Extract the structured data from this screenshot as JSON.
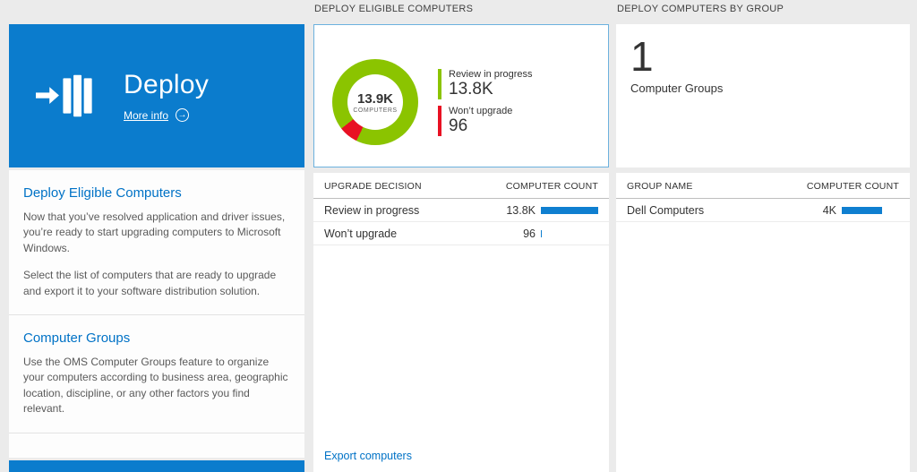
{
  "colors": {
    "tile_blue": "#0b7ccd",
    "link_blue": "#0072c6",
    "bar_blue": "#0f7fd0",
    "chart_green": "#8bc400",
    "chart_red": "#e81123",
    "selected_tile_border": "#6cb1de",
    "page_background": "#ebebeb"
  },
  "left_panel": {
    "tile": {
      "title": "Deploy",
      "more_info_label": "More info"
    },
    "sections": [
      {
        "heading": "Deploy Eligible Computers",
        "paragraphs": [
          "Now that you’ve resolved application and driver issues, you’re ready to start upgrading computers to Microsoft Windows.",
          "Select the list of computers that are ready to upgrade and export it to your software distribution solution."
        ]
      },
      {
        "heading": "Computer Groups",
        "paragraphs": [
          "Use the OMS Computer Groups feature to organize your computers according to business area, geographic location, discipline, or any other factors you find relevant."
        ]
      }
    ]
  },
  "eligible_column": {
    "header": "DEPLOY ELIGIBLE COMPUTERS",
    "donut_center": {
      "value": "13.9K",
      "label": "COMPUTERS"
    },
    "legend": [
      {
        "label": "Review in progress",
        "value": "13.8K"
      },
      {
        "label": "Won’t upgrade",
        "value": "96"
      }
    ],
    "table": {
      "col_label": "UPGRADE DECISION",
      "col_value": "COMPUTER COUNT",
      "rows": [
        {
          "label": "Review in progress",
          "value": "13.8K",
          "bar_pct": 100
        },
        {
          "label": "Won’t upgrade",
          "value": "96",
          "bar_pct": 2
        }
      ]
    },
    "export_link": "Export computers"
  },
  "groups_column": {
    "header": "DEPLOY COMPUTERS BY GROUP",
    "count": "1",
    "count_label": "Computer Groups",
    "table": {
      "col_label": "GROUP NAME",
      "col_value": "COMPUTER COUNT",
      "rows": [
        {
          "label": "Dell Computers",
          "value": "4K",
          "bar_pct": 70
        }
      ]
    }
  },
  "chart_data": {
    "type": "pie",
    "donut": true,
    "title": "Deploy Eligible Computers",
    "categories": [
      "Review in progress",
      "Won’t upgrade"
    ],
    "values": [
      13800,
      96
    ],
    "colors": [
      "#8bc400",
      "#e81123"
    ],
    "center_value": "13.9K",
    "center_label": "COMPUTERS",
    "legend_position": "right"
  }
}
